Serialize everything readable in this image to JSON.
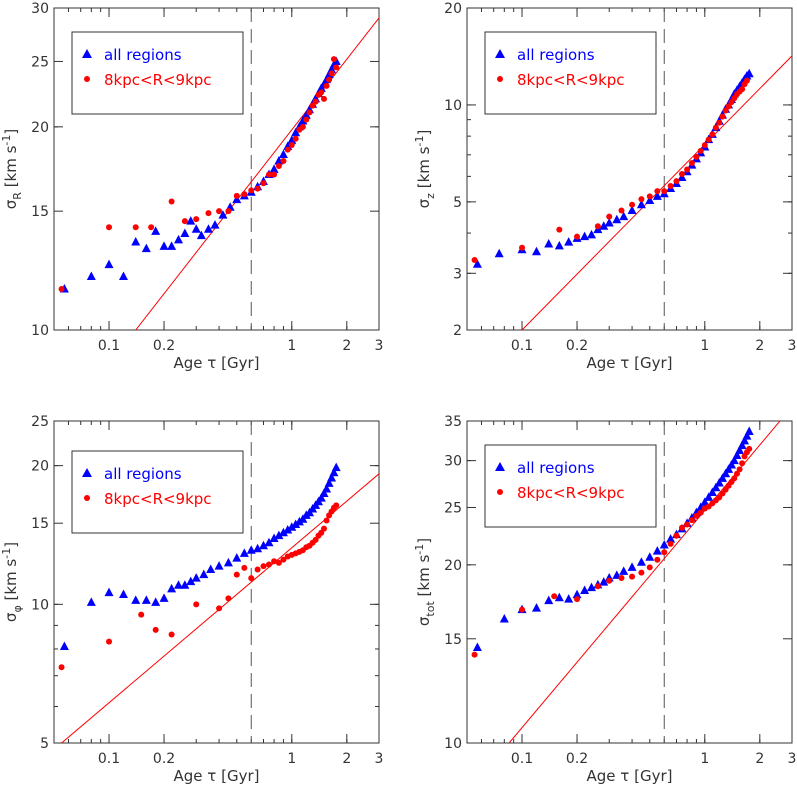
{
  "figure": {
    "legend": {
      "blue_label": "all regions",
      "red_label": "8kpc<R<9kpc"
    },
    "xlabel": "Age τ [Gyr]",
    "colors": {
      "blue": "#0000ff",
      "red": "#ff0000",
      "axes": "#333333",
      "dash": "#555555"
    }
  },
  "chart_data": [
    {
      "type": "scatter",
      "ylabel": "σR [km s⁻¹]",
      "ylabel_main": "σ",
      "ylabel_sub": "R",
      "ylabel_unit": "[km s",
      "ylabel_sup": "-1",
      "ylabel_close": "]",
      "xscale": "log",
      "yscale": "log",
      "xlim": [
        0.05,
        3
      ],
      "ylim": [
        10,
        30
      ],
      "xticks": [
        0.1,
        0.2,
        1,
        2,
        3
      ],
      "yticks": [
        10,
        15,
        20,
        25,
        30
      ],
      "vline_x": 0.6,
      "fit_line": [
        [
          0.14,
          10
        ],
        [
          3,
          29
        ]
      ],
      "legend_position": "top-left",
      "series": [
        {
          "name": "all regions",
          "marker": "triangle",
          "color": "#0000ff",
          "x": [
            0.057,
            0.08,
            0.1,
            0.12,
            0.14,
            0.16,
            0.18,
            0.2,
            0.22,
            0.24,
            0.26,
            0.28,
            0.3,
            0.32,
            0.35,
            0.38,
            0.42,
            0.46,
            0.5,
            0.55,
            0.6,
            0.65,
            0.7,
            0.75,
            0.8,
            0.85,
            0.9,
            0.95,
            1.0,
            1.05,
            1.1,
            1.15,
            1.2,
            1.25,
            1.3,
            1.35,
            1.4,
            1.45,
            1.5,
            1.55,
            1.6,
            1.65,
            1.7,
            1.75
          ],
          "y": [
            11.5,
            12,
            12.5,
            12,
            13.5,
            13.2,
            14,
            13.3,
            13.3,
            13.6,
            13.9,
            14.5,
            14.1,
            13.8,
            14.1,
            14.3,
            14.8,
            15.2,
            15.6,
            15.8,
            16,
            16.3,
            16.6,
            17,
            17.3,
            17.8,
            18.2,
            18.7,
            19.1,
            19.6,
            20,
            20.4,
            20.8,
            21.2,
            21.6,
            22,
            22.4,
            22.8,
            23.1,
            23.5,
            23.9,
            24.3,
            24.7,
            25
          ]
        },
        {
          "name": "8kpc<R<9kpc",
          "marker": "circle",
          "color": "#ff0000",
          "x": [
            0.055,
            0.1,
            0.14,
            0.17,
            0.22,
            0.26,
            0.3,
            0.35,
            0.4,
            0.45,
            0.5,
            0.55,
            0.6,
            0.65,
            0.7,
            0.75,
            0.8,
            0.85,
            0.9,
            0.95,
            1.0,
            1.05,
            1.1,
            1.15,
            1.2,
            1.25,
            1.3,
            1.35,
            1.4,
            1.45,
            1.5,
            1.55,
            1.6,
            1.65,
            1.7,
            1.75
          ],
          "y": [
            11.5,
            14.2,
            14.2,
            14.2,
            15.5,
            14.5,
            14.6,
            14.9,
            15,
            15,
            15.8,
            15.9,
            16.1,
            16.2,
            16.5,
            17,
            17,
            17.5,
            17.8,
            18.5,
            18.8,
            19.2,
            19.8,
            20,
            20.5,
            21,
            21.5,
            21.8,
            22.3,
            22.5,
            22,
            23,
            23.5,
            24,
            25.2,
            24.5
          ]
        }
      ]
    },
    {
      "type": "scatter",
      "ylabel": "σz [km s⁻¹]",
      "ylabel_main": "σ",
      "ylabel_sub": "z",
      "ylabel_unit": "[km s",
      "ylabel_sup": "-1",
      "ylabel_close": "]",
      "xscale": "log",
      "yscale": "log",
      "xlim": [
        0.05,
        3
      ],
      "ylim": [
        2,
        20
      ],
      "xticks": [
        0.1,
        0.2,
        1,
        2,
        3
      ],
      "yticks": [
        2,
        3,
        5,
        10,
        20
      ],
      "vline_x": 0.6,
      "fit_line": [
        [
          0.1,
          2
        ],
        [
          3,
          14.2
        ]
      ],
      "legend_position": "top-left",
      "series": [
        {
          "name": "all regions",
          "marker": "triangle",
          "color": "#0000ff",
          "x": [
            0.057,
            0.075,
            0.1,
            0.12,
            0.14,
            0.16,
            0.18,
            0.2,
            0.22,
            0.24,
            0.26,
            0.28,
            0.3,
            0.33,
            0.36,
            0.4,
            0.45,
            0.5,
            0.55,
            0.6,
            0.65,
            0.7,
            0.75,
            0.8,
            0.85,
            0.9,
            0.95,
            1.0,
            1.05,
            1.1,
            1.15,
            1.2,
            1.25,
            1.3,
            1.35,
            1.4,
            1.45,
            1.5,
            1.55,
            1.6,
            1.65,
            1.7,
            1.75
          ],
          "y": [
            3.2,
            3.45,
            3.55,
            3.5,
            3.7,
            3.65,
            3.75,
            3.85,
            3.9,
            3.95,
            4.1,
            4.2,
            4.3,
            4.4,
            4.5,
            4.7,
            4.9,
            5.05,
            5.2,
            5.3,
            5.5,
            5.7,
            5.95,
            6.2,
            6.5,
            6.8,
            7.1,
            7.4,
            7.8,
            8.1,
            8.5,
            8.9,
            9.3,
            9.7,
            10,
            10.4,
            10.8,
            11.1,
            11.4,
            11.7,
            12,
            12.3,
            12.5
          ]
        },
        {
          "name": "8kpc<R<9kpc",
          "marker": "circle",
          "color": "#ff0000",
          "x": [
            0.055,
            0.1,
            0.16,
            0.2,
            0.26,
            0.3,
            0.35,
            0.4,
            0.45,
            0.5,
            0.55,
            0.6,
            0.65,
            0.7,
            0.75,
            0.8,
            0.85,
            0.9,
            0.95,
            1.0,
            1.05,
            1.1,
            1.15,
            1.2,
            1.25,
            1.3,
            1.35,
            1.4,
            1.45,
            1.5,
            1.55,
            1.6,
            1.65,
            1.7
          ],
          "y": [
            3.3,
            3.6,
            4.1,
            3.9,
            4.2,
            4.5,
            4.7,
            4.9,
            5.1,
            5.2,
            5.4,
            5.4,
            5.6,
            5.8,
            6.1,
            6.3,
            6.6,
            6.9,
            7.2,
            7.5,
            7.8,
            8.1,
            8.5,
            8.8,
            9.2,
            9.6,
            9.9,
            10.2,
            10.5,
            10.8,
            11,
            11.2,
            11.6,
            11.9
          ]
        }
      ]
    },
    {
      "type": "scatter",
      "ylabel": "σφ [km s⁻¹]",
      "ylabel_main": "σ",
      "ylabel_sub": "φ",
      "ylabel_unit": "[km s",
      "ylabel_sup": "-1",
      "ylabel_close": "]",
      "xscale": "log",
      "yscale": "log",
      "xlim": [
        0.05,
        3
      ],
      "ylim": [
        5,
        25
      ],
      "xticks": [
        0.1,
        0.2,
        1,
        2,
        3
      ],
      "yticks": [
        5,
        10,
        15,
        20,
        25
      ],
      "vline_x": 0.6,
      "fit_line": [
        [
          0.055,
          5
        ],
        [
          3,
          19.2
        ]
      ],
      "legend_position": "top-left",
      "series": [
        {
          "name": "all regions",
          "marker": "triangle",
          "color": "#0000ff",
          "x": [
            0.057,
            0.08,
            0.1,
            0.12,
            0.14,
            0.16,
            0.18,
            0.2,
            0.22,
            0.24,
            0.26,
            0.28,
            0.3,
            0.33,
            0.36,
            0.4,
            0.45,
            0.5,
            0.55,
            0.6,
            0.65,
            0.7,
            0.75,
            0.8,
            0.85,
            0.9,
            0.95,
            1.0,
            1.05,
            1.1,
            1.15,
            1.2,
            1.25,
            1.3,
            1.35,
            1.4,
            1.45,
            1.5,
            1.55,
            1.6,
            1.65,
            1.7,
            1.75
          ],
          "y": [
            8.1,
            10.1,
            10.6,
            10.5,
            10.2,
            10.2,
            10.1,
            10.3,
            10.8,
            11,
            11,
            11.2,
            11.4,
            11.6,
            11.9,
            12.1,
            12.3,
            12.6,
            12.9,
            13.1,
            13.2,
            13.4,
            13.6,
            13.9,
            14.1,
            14.3,
            14.5,
            14.7,
            14.9,
            15.1,
            15.3,
            15.6,
            15.8,
            16.1,
            16.4,
            16.7,
            17,
            17.4,
            17.8,
            18.3,
            18.8,
            19.3,
            19.8
          ]
        },
        {
          "name": "8kpc<R<9kpc",
          "marker": "circle",
          "color": "#ff0000",
          "x": [
            0.055,
            0.1,
            0.15,
            0.18,
            0.22,
            0.3,
            0.4,
            0.45,
            0.5,
            0.55,
            0.6,
            0.65,
            0.7,
            0.75,
            0.8,
            0.85,
            0.9,
            0.95,
            1.0,
            1.05,
            1.1,
            1.15,
            1.2,
            1.25,
            1.3,
            1.35,
            1.4,
            1.45,
            1.5,
            1.55,
            1.6,
            1.65,
            1.7,
            1.75
          ],
          "y": [
            7.3,
            8.3,
            9.5,
            8.8,
            8.6,
            10,
            9.8,
            10.3,
            11.6,
            12,
            11.4,
            11.9,
            12.1,
            12.2,
            12.4,
            12.3,
            12.5,
            12.7,
            12.8,
            12.9,
            13,
            13.1,
            13.3,
            13.4,
            13.6,
            13.8,
            14.1,
            14.3,
            14.6,
            15.2,
            15.6,
            15.9,
            16.2,
            16.4
          ]
        }
      ]
    },
    {
      "type": "scatter",
      "ylabel": "σtot [km s⁻¹]",
      "ylabel_main": "σ",
      "ylabel_sub": "tot",
      "ylabel_unit": "[km s",
      "ylabel_sup": "-1",
      "ylabel_close": "]",
      "xscale": "log",
      "yscale": "log",
      "xlim": [
        0.05,
        3
      ],
      "ylim": [
        10,
        35
      ],
      "xticks": [
        0.1,
        0.2,
        1,
        2,
        3
      ],
      "yticks": [
        10,
        15,
        20,
        25,
        30,
        35
      ],
      "vline_x": 0.6,
      "fit_line": [
        [
          0.085,
          10
        ],
        [
          3,
          37
        ]
      ],
      "legend_position": "top-left",
      "series": [
        {
          "name": "all regions",
          "marker": "triangle",
          "color": "#0000ff",
          "x": [
            0.057,
            0.08,
            0.1,
            0.12,
            0.14,
            0.16,
            0.18,
            0.2,
            0.22,
            0.24,
            0.26,
            0.28,
            0.3,
            0.33,
            0.36,
            0.4,
            0.45,
            0.5,
            0.55,
            0.6,
            0.65,
            0.7,
            0.75,
            0.8,
            0.85,
            0.9,
            0.95,
            1.0,
            1.05,
            1.1,
            1.15,
            1.2,
            1.25,
            1.3,
            1.35,
            1.4,
            1.45,
            1.5,
            1.55,
            1.6,
            1.65,
            1.7,
            1.75
          ],
          "y": [
            14.5,
            16.2,
            16.8,
            16.9,
            17.4,
            17.6,
            17.5,
            17.8,
            18.1,
            18.3,
            18.5,
            18.7,
            19,
            19.2,
            19.5,
            19.8,
            20.2,
            20.6,
            21.1,
            21.6,
            22.1,
            22.5,
            23,
            23.5,
            24,
            24.5,
            25,
            25.5,
            26,
            26.5,
            27,
            27.5,
            28,
            28.5,
            29,
            29.5,
            30,
            30.6,
            31.2,
            31.8,
            32.4,
            33,
            33.6
          ]
        },
        {
          "name": "8kpc<R<9kpc",
          "marker": "circle",
          "color": "#ff0000",
          "x": [
            0.055,
            0.1,
            0.15,
            0.2,
            0.26,
            0.3,
            0.35,
            0.4,
            0.45,
            0.5,
            0.55,
            0.6,
            0.65,
            0.7,
            0.75,
            0.8,
            0.85,
            0.9,
            0.95,
            1.0,
            1.05,
            1.1,
            1.15,
            1.2,
            1.25,
            1.3,
            1.35,
            1.4,
            1.45,
            1.5,
            1.55,
            1.6,
            1.65,
            1.7,
            1.75
          ],
          "y": [
            14.1,
            16.8,
            17.7,
            17.5,
            18.4,
            18.8,
            19,
            19.1,
            19.4,
            19.8,
            20.4,
            21,
            21.7,
            22.4,
            23.1,
            23.4,
            23.8,
            24.2,
            24.5,
            24.9,
            25.1,
            25.4,
            25.7,
            26,
            26.4,
            26.8,
            27.2,
            27.6,
            28,
            28.5,
            29,
            29.7,
            30.5,
            31,
            31.4
          ]
        }
      ]
    }
  ]
}
